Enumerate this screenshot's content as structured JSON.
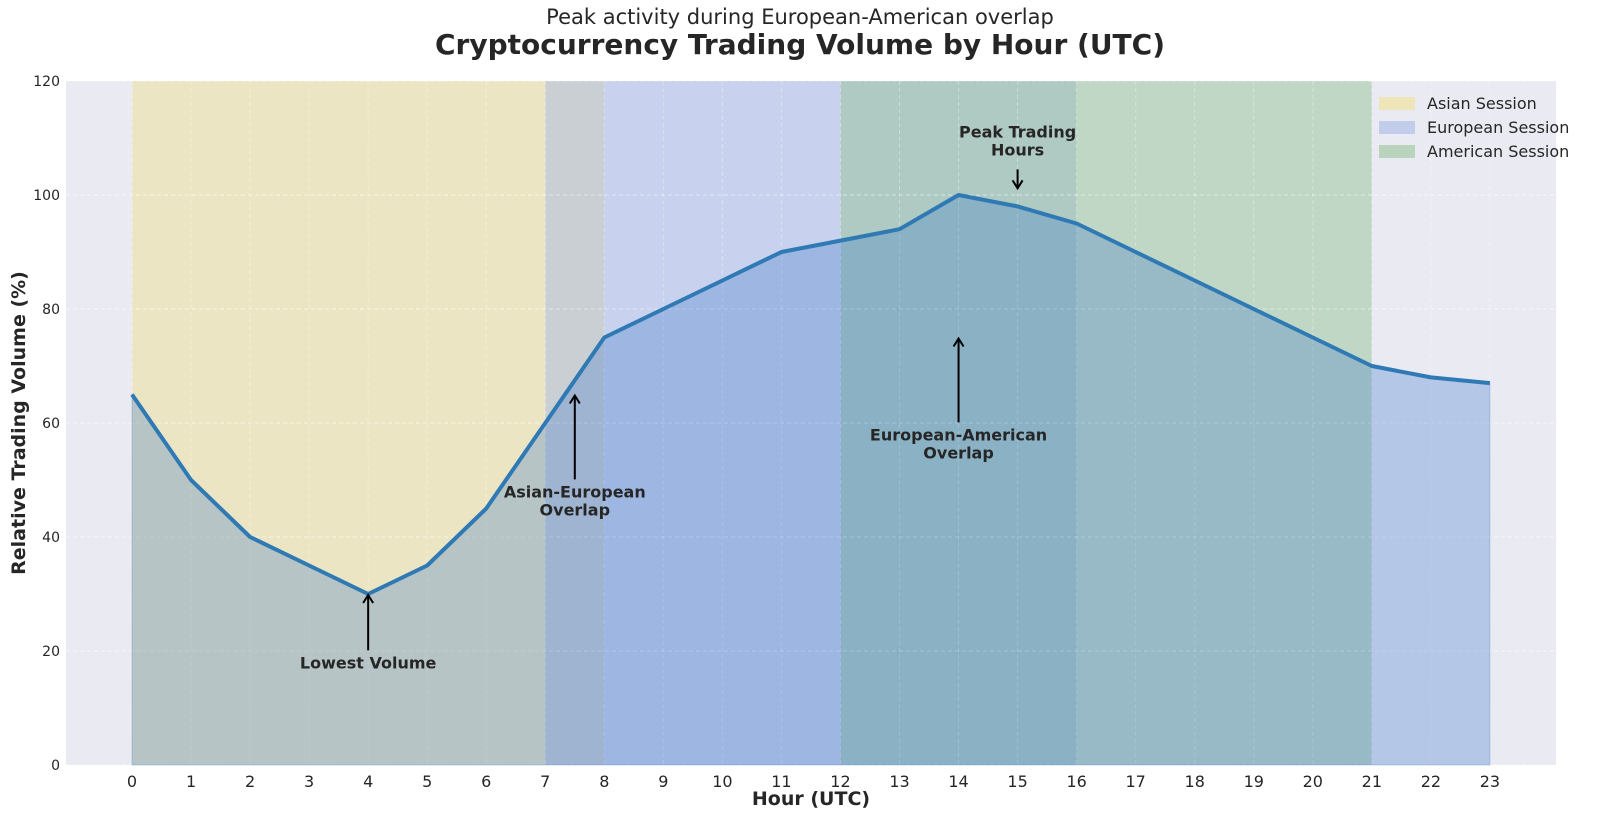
{
  "chart_data": {
    "type": "area",
    "title": "Cryptocurrency Trading Volume by Hour (UTC)",
    "subtitle": "Peak activity during European-American overlap",
    "xlabel": "Hour (UTC)",
    "ylabel": "Relative Trading Volume (%)",
    "x": [
      0,
      1,
      2,
      3,
      4,
      5,
      6,
      7,
      8,
      9,
      10,
      11,
      12,
      13,
      14,
      15,
      16,
      17,
      18,
      19,
      20,
      21,
      22,
      23
    ],
    "series": [
      {
        "name": "Trading Volume",
        "color": "#2f7ab5",
        "values": [
          65,
          50,
          40,
          35,
          30,
          35,
          45,
          60,
          75,
          80,
          85,
          90,
          92,
          94,
          100,
          98,
          95,
          90,
          85,
          80,
          75,
          70,
          68,
          67
        ]
      }
    ],
    "xlim": [
      -1.15,
      24.1
    ],
    "ylim": [
      0,
      120
    ],
    "yticks": [
      0,
      20,
      40,
      60,
      80,
      100,
      120
    ],
    "xticks": [
      0,
      1,
      2,
      3,
      4,
      5,
      6,
      7,
      8,
      9,
      10,
      11,
      12,
      13,
      14,
      15,
      16,
      17,
      18,
      19,
      20,
      21,
      22,
      23
    ],
    "grid": true,
    "sessions": [
      {
        "name": "Asian Session",
        "start": 0,
        "end": 8,
        "color": "#f0e08a"
      },
      {
        "name": "European Session",
        "start": 7,
        "end": 16,
        "color": "#9fb4e6"
      },
      {
        "name": "American Session",
        "start": 12,
        "end": 21,
        "color": "#8fc08f"
      }
    ],
    "annotations": [
      {
        "text": [
          "Lowest Volume"
        ],
        "x": 4,
        "y": 30,
        "text_y": 18,
        "direction": "up"
      },
      {
        "text": [
          "Asian-European",
          "Overlap"
        ],
        "x": 7.5,
        "y": 65,
        "text_y": 48,
        "direction": "up"
      },
      {
        "text": [
          "European-American",
          "Overlap"
        ],
        "x": 14,
        "y": 75,
        "text_y": 58,
        "direction": "up"
      },
      {
        "text": [
          "Peak Trading",
          "Hours"
        ],
        "x": 15,
        "y": 101,
        "text_y": 108,
        "direction": "down"
      }
    ],
    "legend": {
      "position": "upper right",
      "entries": [
        "Asian Session",
        "European Session",
        "American Session"
      ]
    }
  }
}
